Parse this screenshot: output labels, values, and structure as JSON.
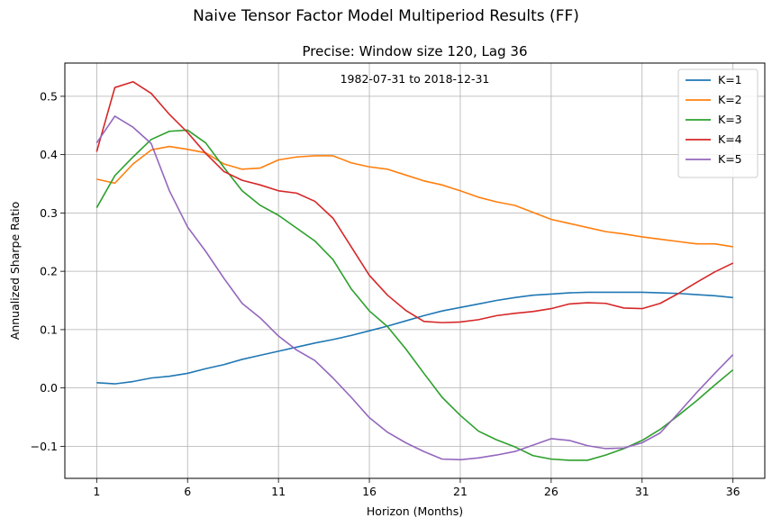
{
  "figure": {
    "suptitle": "Naive Tensor Factor Model Multiperiod Results (FF)"
  },
  "chart_data": {
    "type": "line",
    "title": "Precise: Window size 120, Lag 36",
    "annotation": "1982-07-31 to 2018-12-31",
    "xlabel": "Horizon (Months)",
    "ylabel": "Annualized Sharpe Ratio",
    "xlim": [
      -0.75,
      37.75
    ],
    "ylim": [
      -0.155,
      0.557
    ],
    "xticks": [
      1,
      6,
      11,
      16,
      21,
      26,
      31,
      36
    ],
    "yticks": [
      -0.1,
      0.0,
      0.1,
      0.2,
      0.3,
      0.4,
      0.5
    ],
    "ytick_labels": [
      "−0.1",
      "0.0",
      "0.1",
      "0.2",
      "0.3",
      "0.4",
      "0.5"
    ],
    "grid": true,
    "legend_position": "top-right",
    "x": [
      1,
      2,
      3,
      4,
      5,
      6,
      7,
      8,
      9,
      10,
      11,
      12,
      13,
      14,
      15,
      16,
      17,
      18,
      19,
      20,
      21,
      22,
      23,
      24,
      25,
      26,
      27,
      28,
      29,
      30,
      31,
      32,
      33,
      34,
      35,
      36
    ],
    "series": [
      {
        "name": "K=1",
        "color": "#1f77b4",
        "values": [
          0.009,
          0.007,
          0.011,
          0.017,
          0.02,
          0.025,
          0.033,
          0.04,
          0.049,
          0.056,
          0.063,
          0.07,
          0.077,
          0.083,
          0.09,
          0.098,
          0.106,
          0.115,
          0.124,
          0.132,
          0.138,
          0.144,
          0.15,
          0.155,
          0.159,
          0.161,
          0.163,
          0.164,
          0.164,
          0.164,
          0.164,
          0.163,
          0.162,
          0.16,
          0.158,
          0.155
        ]
      },
      {
        "name": "K=2",
        "color": "#ff7f0e",
        "values": [
          0.358,
          0.351,
          0.384,
          0.408,
          0.414,
          0.409,
          0.403,
          0.384,
          0.375,
          0.377,
          0.391,
          0.396,
          0.398,
          0.398,
          0.386,
          0.379,
          0.375,
          0.365,
          0.355,
          0.348,
          0.338,
          0.327,
          0.319,
          0.313,
          0.301,
          0.289,
          0.282,
          0.275,
          0.268,
          0.264,
          0.259,
          0.255,
          0.251,
          0.247,
          0.247,
          0.242
        ]
      },
      {
        "name": "K=3",
        "color": "#2ca02c",
        "values": [
          0.309,
          0.364,
          0.396,
          0.426,
          0.44,
          0.442,
          0.42,
          0.378,
          0.338,
          0.313,
          0.296,
          0.274,
          0.252,
          0.22,
          0.17,
          0.132,
          0.105,
          0.067,
          0.025,
          -0.016,
          -0.047,
          -0.074,
          -0.089,
          -0.101,
          -0.116,
          -0.122,
          -0.124,
          -0.124,
          -0.115,
          -0.104,
          -0.09,
          -0.071,
          -0.047,
          -0.022,
          0.005,
          0.031
        ]
      },
      {
        "name": "K=4",
        "color": "#d62728",
        "values": [
          0.405,
          0.515,
          0.525,
          0.505,
          0.469,
          0.438,
          0.402,
          0.371,
          0.356,
          0.348,
          0.338,
          0.334,
          0.32,
          0.291,
          0.242,
          0.193,
          0.159,
          0.133,
          0.114,
          0.112,
          0.113,
          0.117,
          0.124,
          0.128,
          0.131,
          0.136,
          0.144,
          0.146,
          0.145,
          0.137,
          0.136,
          0.145,
          0.162,
          0.181,
          0.199,
          0.214
        ]
      },
      {
        "name": "K=5",
        "color": "#9467bd",
        "values": [
          0.42,
          0.466,
          0.447,
          0.419,
          0.338,
          0.276,
          0.234,
          0.188,
          0.145,
          0.12,
          0.089,
          0.065,
          0.047,
          0.017,
          -0.016,
          -0.051,
          -0.076,
          -0.094,
          -0.109,
          -0.122,
          -0.123,
          -0.12,
          -0.115,
          -0.109,
          -0.098,
          -0.087,
          -0.09,
          -0.099,
          -0.104,
          -0.103,
          -0.094,
          -0.077,
          -0.043,
          -0.008,
          0.025,
          0.057
        ]
      }
    ]
  }
}
